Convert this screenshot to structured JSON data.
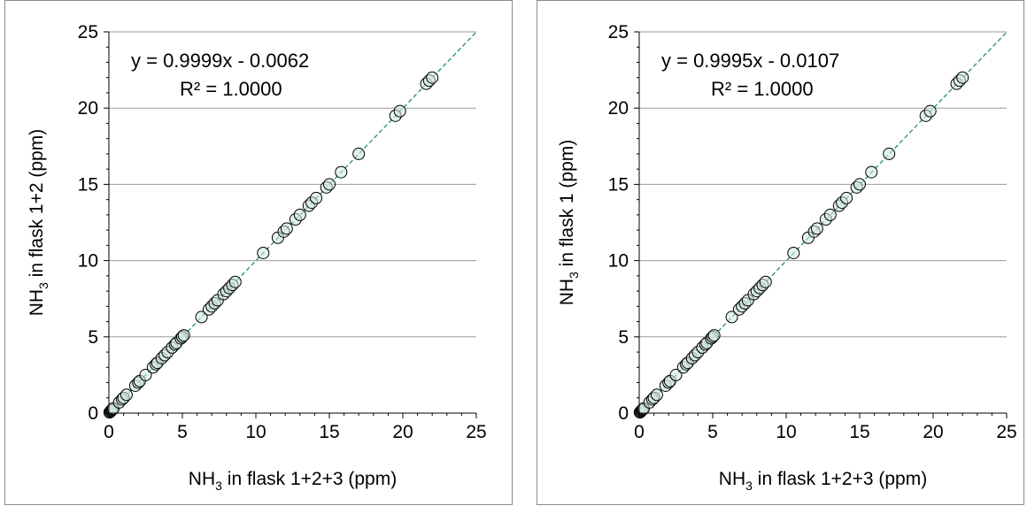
{
  "chart_data": [
    {
      "type": "scatter",
      "title": "",
      "xlabel": {
        "prefix": "NH",
        "sub": "3",
        "suffix": " in flask 1+2+3 (ppm)"
      },
      "ylabel": {
        "prefix": "NH",
        "sub": "3",
        "suffix": " in flask 1+2 (ppm)"
      },
      "xlim": [
        0,
        25
      ],
      "ylim": [
        0,
        25
      ],
      "xticks": [
        0,
        5,
        10,
        15,
        20,
        25
      ],
      "yticks": [
        0,
        5,
        10,
        15,
        20,
        25
      ],
      "grid": "horizontal",
      "marker": {
        "shape": "open-circle",
        "stroke": "#000000",
        "fill": "#cfe8de"
      },
      "trendline": {
        "color": "#2e9e5b",
        "style": "dashed",
        "slope": 0.9999,
        "intercept": -0.0062
      },
      "annotations": [
        "y = 0.9999x - 0.0062",
        "R² = 1.0000"
      ],
      "series": [
        {
          "x": [
            0.05,
            0.1,
            0.15,
            0.2,
            0.25,
            0.3,
            0.7,
            0.9,
            1.0,
            1.2,
            1.8,
            2.0,
            2.1,
            2.5,
            3.0,
            3.2,
            3.3,
            3.6,
            3.8,
            4.0,
            4.3,
            4.5,
            4.6,
            4.9,
            5.0,
            5.1,
            6.3,
            6.8,
            7.0,
            7.2,
            7.4,
            7.8,
            8.0,
            8.2,
            8.4,
            8.6,
            10.5,
            11.5,
            11.9,
            12.1,
            12.7,
            13.0,
            13.6,
            13.8,
            14.1,
            14.8,
            15.0,
            15.8,
            17.0,
            19.5,
            19.8,
            21.6,
            21.8,
            22.0
          ],
          "y": [
            0.05,
            0.1,
            0.15,
            0.2,
            0.25,
            0.3,
            0.7,
            0.9,
            1.0,
            1.2,
            1.8,
            2.0,
            2.1,
            2.5,
            3.0,
            3.2,
            3.3,
            3.6,
            3.8,
            4.0,
            4.3,
            4.5,
            4.6,
            4.9,
            5.0,
            5.1,
            6.3,
            6.8,
            7.0,
            7.2,
            7.4,
            7.8,
            8.0,
            8.2,
            8.4,
            8.6,
            10.5,
            11.5,
            11.9,
            12.1,
            12.7,
            13.0,
            13.6,
            13.8,
            14.1,
            14.8,
            15.0,
            15.8,
            17.0,
            19.5,
            19.8,
            21.6,
            21.8,
            22.0
          ]
        }
      ]
    },
    {
      "type": "scatter",
      "title": "",
      "xlabel": {
        "prefix": "NH",
        "sub": "3",
        "suffix": " in flask 1+2+3 (ppm)"
      },
      "ylabel": {
        "prefix": "NH",
        "sub": "3",
        "suffix": " in flask 1 (ppm)"
      },
      "xlim": [
        0,
        25
      ],
      "ylim": [
        0,
        25
      ],
      "xticks": [
        0,
        5,
        10,
        15,
        20,
        25
      ],
      "yticks": [
        0,
        5,
        10,
        15,
        20,
        25
      ],
      "grid": "horizontal",
      "marker": {
        "shape": "open-circle",
        "stroke": "#000000",
        "fill": "#cfe8de"
      },
      "trendline": {
        "color": "#2e9e5b",
        "style": "dashed",
        "slope": 0.9995,
        "intercept": -0.0107
      },
      "annotations": [
        "y = 0.9995x - 0.0107",
        "R² = 1.0000"
      ],
      "series": [
        {
          "x": [
            0.05,
            0.1,
            0.15,
            0.2,
            0.25,
            0.3,
            0.7,
            0.9,
            1.0,
            1.2,
            1.8,
            2.0,
            2.1,
            2.5,
            3.0,
            3.2,
            3.3,
            3.6,
            3.8,
            4.0,
            4.3,
            4.5,
            4.6,
            4.9,
            5.0,
            5.1,
            6.3,
            6.8,
            7.0,
            7.2,
            7.4,
            7.8,
            8.0,
            8.2,
            8.4,
            8.6,
            10.5,
            11.5,
            11.9,
            12.1,
            12.7,
            13.0,
            13.6,
            13.8,
            14.1,
            14.8,
            15.0,
            15.8,
            17.0,
            19.5,
            19.8,
            21.6,
            21.8,
            22.0
          ],
          "y": [
            0.05,
            0.1,
            0.15,
            0.2,
            0.25,
            0.3,
            0.7,
            0.9,
            1.0,
            1.2,
            1.8,
            2.0,
            2.1,
            2.5,
            3.0,
            3.2,
            3.3,
            3.6,
            3.8,
            4.0,
            4.3,
            4.5,
            4.6,
            4.9,
            5.0,
            5.1,
            6.3,
            6.8,
            7.0,
            7.2,
            7.4,
            7.8,
            8.0,
            8.2,
            8.4,
            8.6,
            10.5,
            11.5,
            11.9,
            12.1,
            12.7,
            13.0,
            13.6,
            13.8,
            14.1,
            14.8,
            15.0,
            15.8,
            17.0,
            19.5,
            19.8,
            21.6,
            21.8,
            22.0
          ]
        }
      ]
    }
  ]
}
